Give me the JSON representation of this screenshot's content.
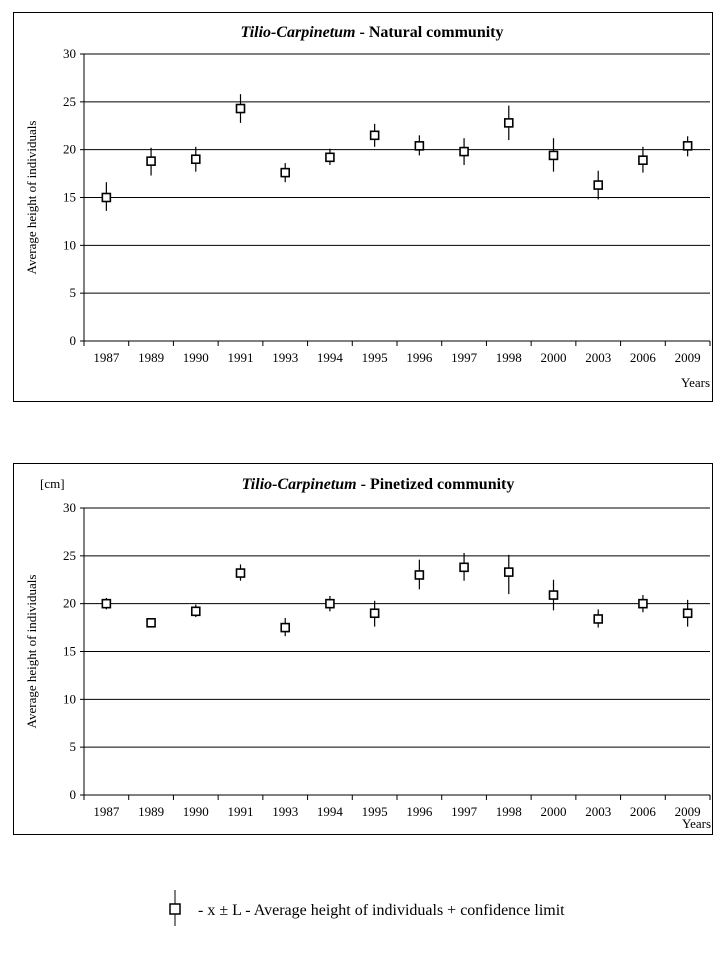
{
  "chart_data": [
    {
      "type": "scatter",
      "title_italic": "Tilio-Carpinetum",
      "title_rest": " - Natural community",
      "unit_label": "",
      "ylabel": "Average height of individuals",
      "xlabel": "Years",
      "ylim": [
        0,
        30
      ],
      "yticks": [
        0,
        5,
        10,
        15,
        20,
        25,
        30
      ],
      "categories": [
        "1987",
        "1989",
        "1990",
        "1991",
        "1993",
        "1994",
        "1995",
        "1996",
        "1997",
        "1998",
        "2000",
        "2003",
        "2006",
        "2009"
      ],
      "values": [
        15.0,
        18.8,
        19.0,
        24.3,
        17.6,
        19.2,
        21.5,
        20.4,
        19.8,
        22.8,
        19.4,
        16.3,
        18.9,
        20.4
      ],
      "lower": [
        13.6,
        17.3,
        17.7,
        22.8,
        16.6,
        18.4,
        20.3,
        19.4,
        18.4,
        21.0,
        17.7,
        14.8,
        17.6,
        19.3
      ],
      "upper": [
        16.6,
        20.2,
        20.3,
        25.8,
        18.6,
        20.1,
        22.7,
        21.5,
        21.2,
        24.6,
        21.2,
        17.8,
        20.3,
        21.4
      ],
      "grid": true
    },
    {
      "type": "scatter",
      "title_italic": "Tilio-Carpinetum",
      "title_rest": " - Pinetized community",
      "unit_label": "[cm]",
      "ylabel": "Average height of individuals",
      "xlabel": "Years",
      "ylim": [
        0,
        30
      ],
      "yticks": [
        0,
        5,
        10,
        15,
        20,
        25,
        30
      ],
      "categories": [
        "1987",
        "1989",
        "1990",
        "1991",
        "1993",
        "1994",
        "1995",
        "1996",
        "1997",
        "1998",
        "2000",
        "2003",
        "2006",
        "2009"
      ],
      "values": [
        20.0,
        18.0,
        19.2,
        23.2,
        17.5,
        20.0,
        19.0,
        23.0,
        23.8,
        23.3,
        20.9,
        18.4,
        20.0,
        19.0
      ],
      "lower": [
        19.4,
        17.6,
        18.6,
        22.4,
        16.6,
        19.2,
        17.6,
        21.5,
        22.4,
        21.0,
        19.3,
        17.5,
        19.1,
        17.6
      ],
      "upper": [
        20.6,
        18.4,
        19.9,
        24.1,
        18.5,
        20.8,
        20.3,
        24.6,
        25.3,
        25.1,
        22.5,
        19.4,
        20.9,
        20.4
      ],
      "grid": true
    }
  ],
  "legend": {
    "text": "- x ± L - Average height of individuals + confidence limit",
    "icon": "square-marker-with-error-bar"
  }
}
